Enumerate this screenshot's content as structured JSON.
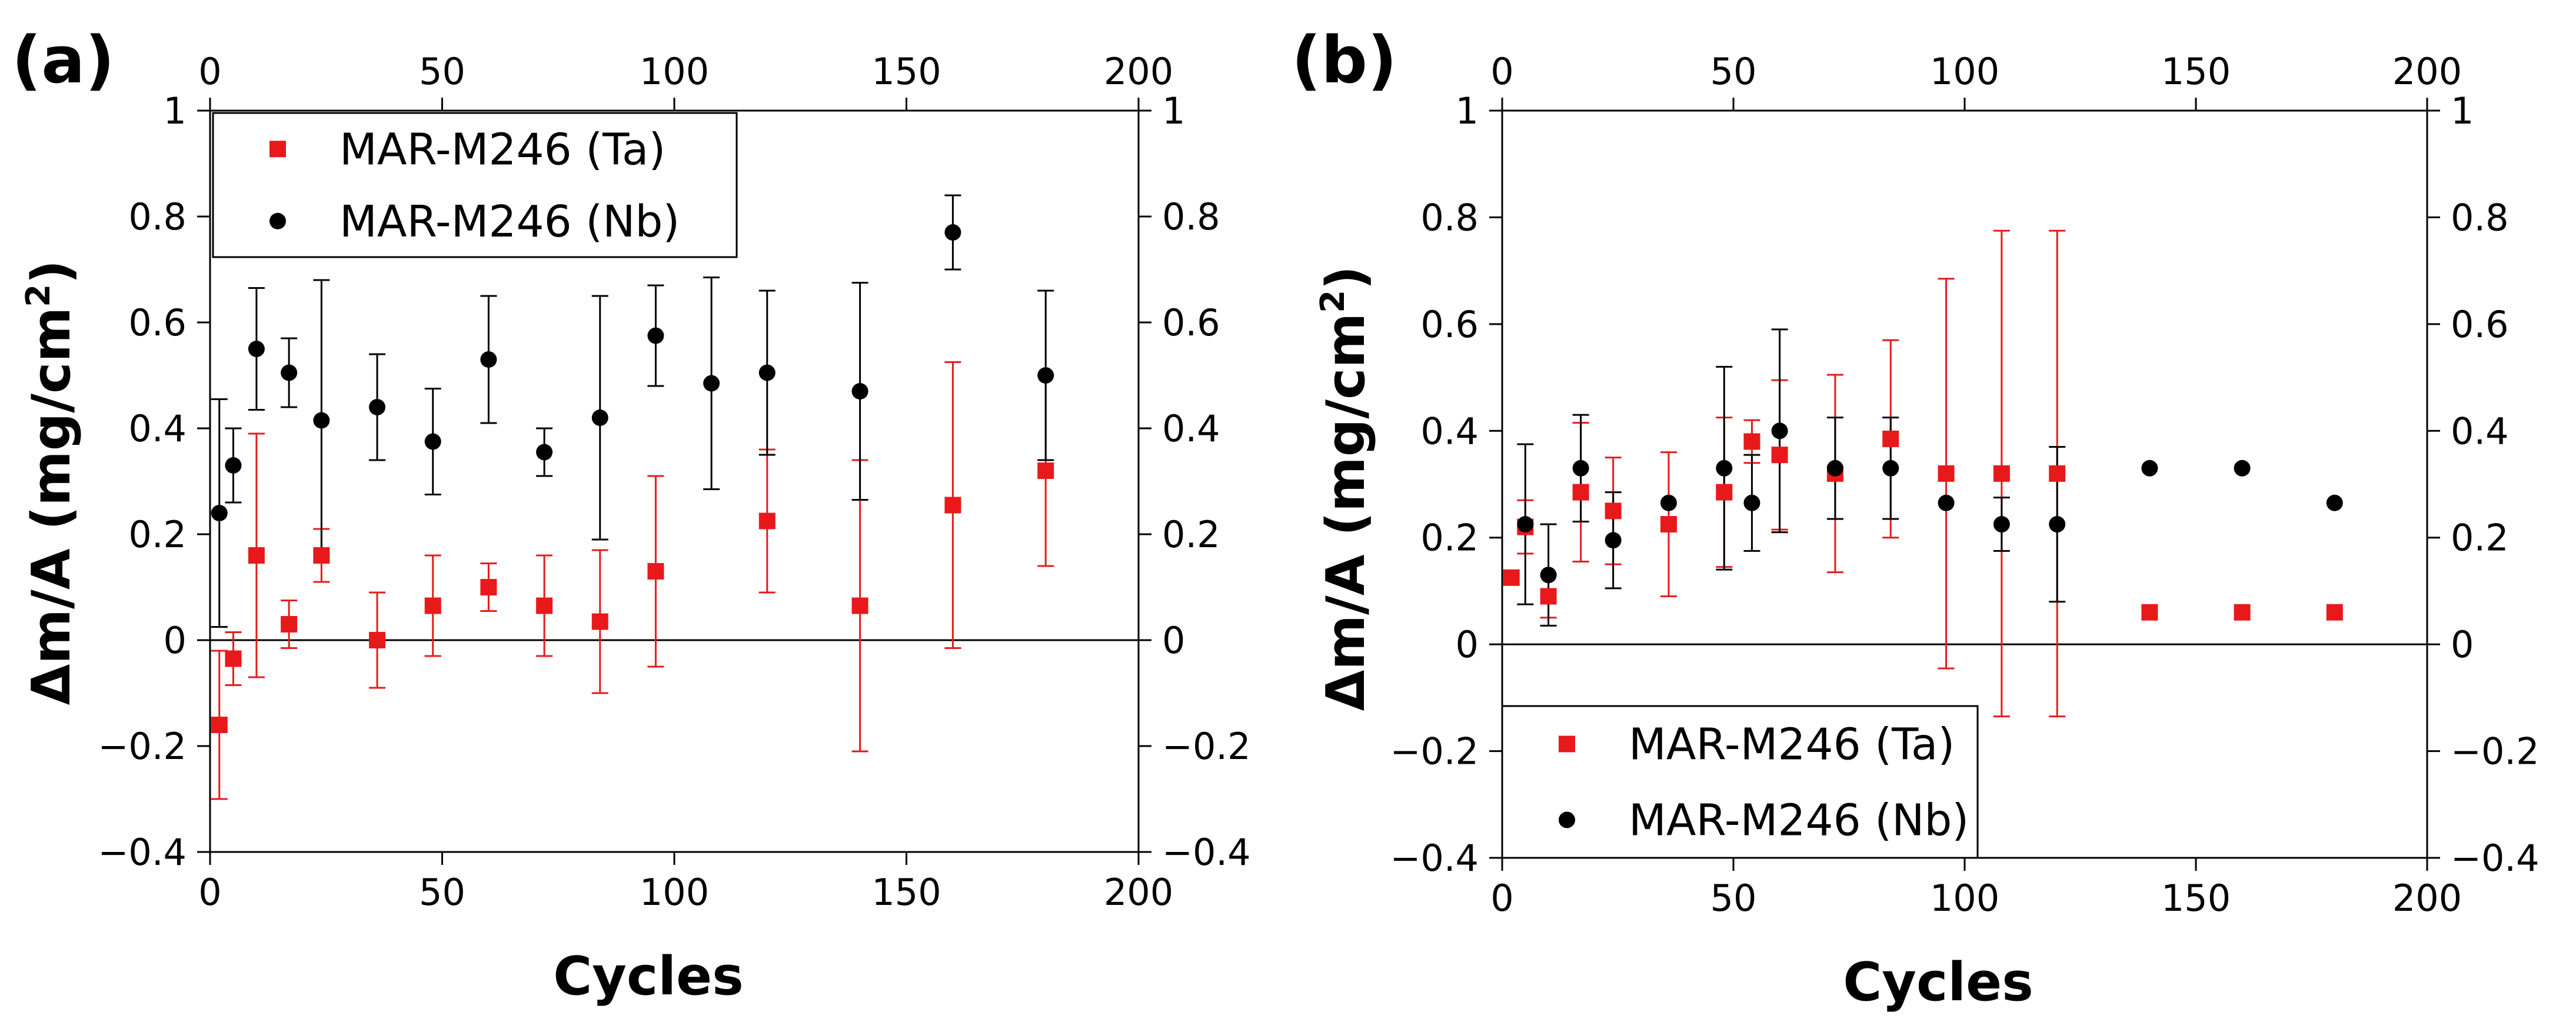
{
  "chart_data": [
    {
      "panel": "(a)",
      "type": "scatter",
      "xlabel": "Cycles",
      "ylabel_main": "Δm/A (mg/cm",
      "ylabel_sup": "2",
      "ylabel_end": ")",
      "xlim": [
        0,
        200
      ],
      "ylim": [
        -0.4,
        1
      ],
      "xticks": [
        0,
        50,
        100,
        150,
        200
      ],
      "yticks": [
        -0.4,
        -0.2,
        0,
        0.2,
        0.4,
        0.6,
        0.8,
        1
      ],
      "legend_position": "top-left",
      "series": [
        {
          "name": "MAR-M246 (Ta)",
          "marker": "square",
          "color": "#e8191b",
          "points": [
            {
              "x": 2,
              "y": -0.16,
              "err": 0.14
            },
            {
              "x": 5,
              "y": -0.035,
              "err": 0.05
            },
            {
              "x": 10,
              "y": 0.16,
              "err": 0.23
            },
            {
              "x": 17,
              "y": 0.03,
              "err": 0.045
            },
            {
              "x": 24,
              "y": 0.16,
              "err": 0.05
            },
            {
              "x": 36,
              "y": 0.0,
              "err": 0.09
            },
            {
              "x": 48,
              "y": 0.065,
              "err": 0.095
            },
            {
              "x": 60,
              "y": 0.1,
              "err": 0.045
            },
            {
              "x": 72,
              "y": 0.065,
              "err": 0.095
            },
            {
              "x": 84,
              "y": 0.035,
              "err": 0.135
            },
            {
              "x": 96,
              "y": 0.13,
              "err": 0.18
            },
            {
              "x": 120,
              "y": 0.225,
              "err": 0.135
            },
            {
              "x": 140,
              "y": 0.065,
              "err": 0.275
            },
            {
              "x": 160,
              "y": 0.255,
              "err": 0.27
            },
            {
              "x": 180,
              "y": 0.32,
              "err": 0.18
            }
          ]
        },
        {
          "name": "MAR-M246 (Nb)",
          "marker": "circle",
          "color": "#000000",
          "points": [
            {
              "x": 2,
              "y": 0.24,
              "err": 0.215
            },
            {
              "x": 5,
              "y": 0.33,
              "err": 0.07
            },
            {
              "x": 10,
              "y": 0.55,
              "err": 0.115
            },
            {
              "x": 17,
              "y": 0.505,
              "err": 0.065
            },
            {
              "x": 24,
              "y": 0.415,
              "err": 0.265
            },
            {
              "x": 36,
              "y": 0.44,
              "err": 0.1
            },
            {
              "x": 48,
              "y": 0.375,
              "err": 0.1
            },
            {
              "x": 60,
              "y": 0.53,
              "err": 0.12
            },
            {
              "x": 72,
              "y": 0.355,
              "err": 0.045
            },
            {
              "x": 84,
              "y": 0.42,
              "err": 0.23
            },
            {
              "x": 96,
              "y": 0.575,
              "err": 0.095
            },
            {
              "x": 108,
              "y": 0.485,
              "err": 0.2
            },
            {
              "x": 120,
              "y": 0.505,
              "err": 0.155
            },
            {
              "x": 140,
              "y": 0.47,
              "err": 0.205
            },
            {
              "x": 160,
              "y": 0.77,
              "err": 0.07
            },
            {
              "x": 180,
              "y": 0.5,
              "err": 0.16
            }
          ]
        }
      ]
    },
    {
      "panel": "(b)",
      "type": "scatter",
      "xlabel": "Cycles",
      "ylabel_main": "Δm/A (mg/cm",
      "ylabel_sup": "2",
      "ylabel_end": ")",
      "xlim": [
        0,
        200
      ],
      "ylim": [
        -0.4,
        1
      ],
      "xticks": [
        0,
        50,
        100,
        150,
        200
      ],
      "yticks": [
        -0.4,
        -0.2,
        0,
        0.2,
        0.4,
        0.6,
        0.8,
        1
      ],
      "legend_position": "bottom-left",
      "series": [
        {
          "name": "MAR-M246 (Ta)",
          "marker": "square",
          "color": "#e8191b",
          "points": [
            {
              "x": 2,
              "y": 0.125,
              "err": 0
            },
            {
              "x": 5,
              "y": 0.22,
              "err": 0.05
            },
            {
              "x": 10,
              "y": 0.09,
              "err": 0.04
            },
            {
              "x": 17,
              "y": 0.285,
              "err": 0.13
            },
            {
              "x": 24,
              "y": 0.25,
              "err": 0.1
            },
            {
              "x": 36,
              "y": 0.225,
              "err": 0.135
            },
            {
              "x": 48,
              "y": 0.285,
              "err": 0.14
            },
            {
              "x": 54,
              "y": 0.38,
              "err": 0.04
            },
            {
              "x": 60,
              "y": 0.355,
              "err": 0.14
            },
            {
              "x": 72,
              "y": 0.32,
              "err": 0.185
            },
            {
              "x": 84,
              "y": 0.385,
              "err": 0.185
            },
            {
              "x": 96,
              "y": 0.32,
              "err": 0.365
            },
            {
              "x": 108,
              "y": 0.32,
              "err": 0.455
            },
            {
              "x": 120,
              "y": 0.32,
              "err": 0.455
            },
            {
              "x": 140,
              "y": 0.06,
              "err": 0
            },
            {
              "x": 160,
              "y": 0.06,
              "err": 0
            },
            {
              "x": 180,
              "y": 0.06,
              "err": 0
            }
          ]
        },
        {
          "name": "MAR-M246 (Nb)",
          "marker": "circle",
          "color": "#000000",
          "points": [
            {
              "x": 5,
              "y": 0.225,
              "err": 0.15
            },
            {
              "x": 10,
              "y": 0.13,
              "err": 0.095
            },
            {
              "x": 17,
              "y": 0.33,
              "err": 0.1
            },
            {
              "x": 24,
              "y": 0.195,
              "err": 0.09
            },
            {
              "x": 36,
              "y": 0.265,
              "err": 0
            },
            {
              "x": 48,
              "y": 0.33,
              "err": 0.19
            },
            {
              "x": 54,
              "y": 0.265,
              "err": 0.09
            },
            {
              "x": 60,
              "y": 0.4,
              "err": 0.19
            },
            {
              "x": 72,
              "y": 0.33,
              "err": 0.095
            },
            {
              "x": 84,
              "y": 0.33,
              "err": 0.095
            },
            {
              "x": 96,
              "y": 0.265,
              "err": 0
            },
            {
              "x": 108,
              "y": 0.225,
              "err": 0.05
            },
            {
              "x": 120,
              "y": 0.225,
              "err": 0.145
            },
            {
              "x": 140,
              "y": 0.33,
              "err": 0
            },
            {
              "x": 160,
              "y": 0.33,
              "err": 0
            },
            {
              "x": 180,
              "y": 0.265,
              "err": 0
            }
          ]
        }
      ]
    }
  ]
}
